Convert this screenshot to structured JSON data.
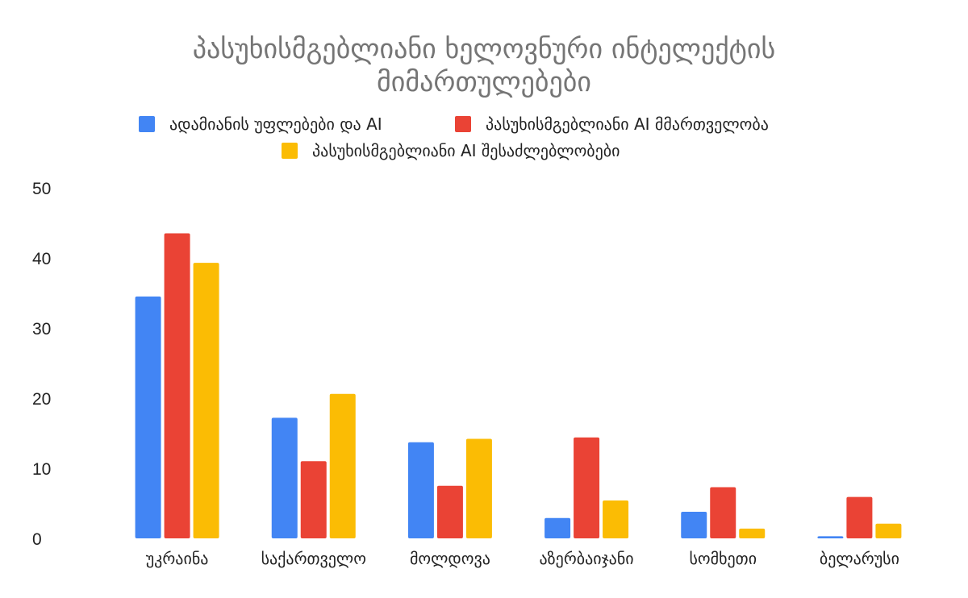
{
  "chart_data": {
    "type": "bar",
    "title": "პასუხისმგებლიანი ხელოვნური ინტელექტის მიმართულებები",
    "title_lines": [
      "პასუხისმგებლიანი ხელოვნური ინტელექტის",
      "მიმართულებები"
    ],
    "xlabel": "",
    "ylabel": "",
    "ylim": [
      0,
      50
    ],
    "yticks": [
      0,
      10,
      20,
      30,
      40,
      50
    ],
    "grid": false,
    "legend_position": "top",
    "categories": [
      "უკრაინა",
      "საქართველო",
      "მოლდოვა",
      "აზერბაიჯანი",
      "სომხეთი",
      "ბელარუსი"
    ],
    "series": [
      {
        "name": "ადამიანის უფლებები და AI",
        "color": "#4285F4",
        "values": [
          34.5,
          17.2,
          13.7,
          2.9,
          3.8,
          0.3
        ]
      },
      {
        "name": "პასუხისმგებლიანი AI მმართველობა",
        "color": "#EA4335",
        "values": [
          43.5,
          11.0,
          7.5,
          14.4,
          7.3,
          5.9
        ]
      },
      {
        "name": "პასუხისმგებლიანი AI შესაძლებლობები",
        "color": "#FBBC04",
        "values": [
          39.3,
          20.6,
          14.2,
          5.4,
          1.4,
          2.1
        ]
      }
    ]
  }
}
